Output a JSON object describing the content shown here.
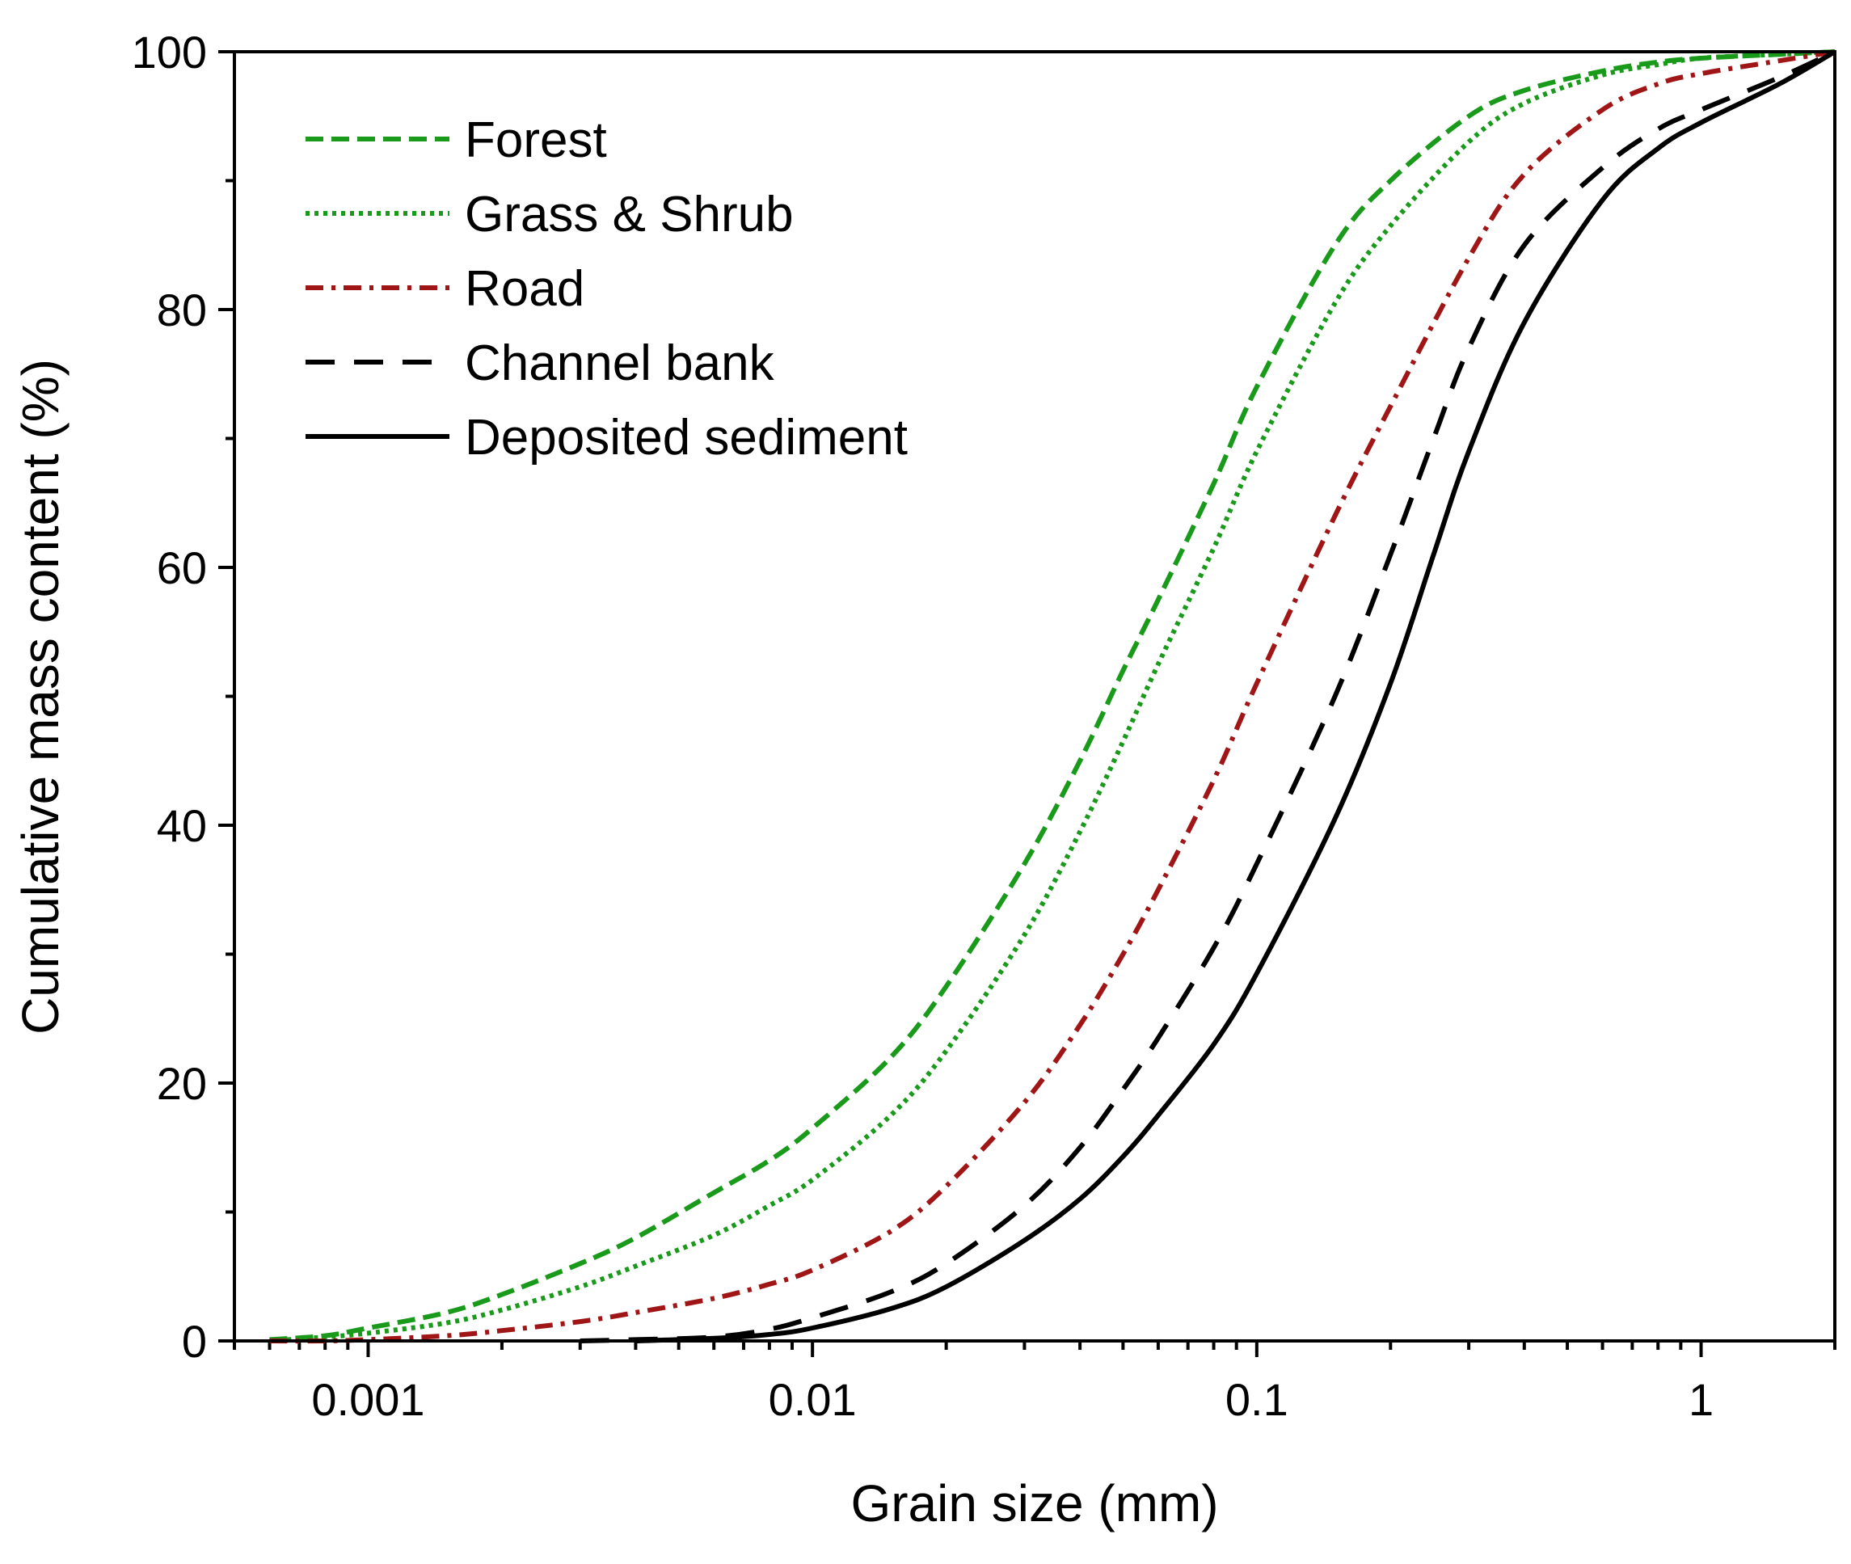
{
  "chart_data": {
    "type": "line",
    "xscale": "log",
    "xlabel": "Grain size (mm)",
    "ylabel": "Cumulative mass content (%)",
    "xlim": [
      0.0005,
      2
    ],
    "ylim": [
      0,
      100
    ],
    "x_ticks": [
      {
        "value": 0.001,
        "label": "0.001"
      },
      {
        "value": 0.01,
        "label": "0.01"
      },
      {
        "value": 0.1,
        "label": "0.1"
      },
      {
        "value": 1,
        "label": "1"
      }
    ],
    "y_ticks": [
      {
        "value": 0,
        "label": "0"
      },
      {
        "value": 20,
        "label": "20"
      },
      {
        "value": 40,
        "label": "40"
      },
      {
        "value": 60,
        "label": "60"
      },
      {
        "value": 80,
        "label": "80"
      },
      {
        "value": 100,
        "label": "100"
      }
    ],
    "legend_position": "top-left",
    "series": [
      {
        "name": "Forest",
        "color": "#1a9a1a",
        "style": "short-dash",
        "x": [
          0.0006,
          0.0008,
          0.001,
          0.0015,
          0.002,
          0.003,
          0.004,
          0.006,
          0.008,
          0.01,
          0.015,
          0.02,
          0.03,
          0.04,
          0.05,
          0.06,
          0.08,
          0.1,
          0.15,
          0.2,
          0.3,
          0.4,
          0.6,
          0.8,
          1,
          1.5,
          2
        ],
        "y": [
          0.1,
          0.4,
          1,
          2.2,
          3.6,
          6,
          8,
          11.5,
          14,
          16.5,
          22,
          27.5,
          37,
          45,
          52,
          57.5,
          66.5,
          74,
          85,
          90,
          95,
          97,
          98.5,
          99.2,
          99.5,
          99.8,
          100
        ]
      },
      {
        "name": "Grass & Shrub",
        "color": "#1a9a1a",
        "style": "dotted",
        "x": [
          0.0006,
          0.0008,
          0.001,
          0.0015,
          0.002,
          0.003,
          0.004,
          0.006,
          0.008,
          0.01,
          0.015,
          0.02,
          0.03,
          0.04,
          0.05,
          0.06,
          0.08,
          0.1,
          0.15,
          0.2,
          0.3,
          0.4,
          0.6,
          0.8,
          1,
          1.5,
          2
        ],
        "y": [
          0,
          0.3,
          0.6,
          1.4,
          2.4,
          4.2,
          5.8,
          8.2,
          10.5,
          12.5,
          17.5,
          22.5,
          31.5,
          39.5,
          46.5,
          52.5,
          61.5,
          69,
          80.5,
          86.5,
          93,
          96,
          98.2,
          99,
          99.5,
          99.8,
          100
        ]
      },
      {
        "name": "Road",
        "color": "#a01616",
        "style": "dash-dot",
        "x": [
          0.0006,
          0.0008,
          0.001,
          0.0015,
          0.002,
          0.003,
          0.004,
          0.006,
          0.008,
          0.01,
          0.015,
          0.02,
          0.03,
          0.04,
          0.05,
          0.06,
          0.08,
          0.1,
          0.15,
          0.2,
          0.3,
          0.4,
          0.6,
          0.8,
          1,
          1.5,
          2
        ],
        "y": [
          0,
          0,
          0.1,
          0.4,
          0.8,
          1.5,
          2.2,
          3.3,
          4.4,
          5.5,
          8.5,
          12,
          18.5,
          24.5,
          30,
          35,
          43.5,
          51,
          64,
          72.5,
          84,
          90.5,
          95.5,
          97.5,
          98.3,
          99.3,
          100
        ]
      },
      {
        "name": "Channel bank",
        "color": "#000000",
        "style": "long-dash",
        "x": [
          0.003,
          0.004,
          0.006,
          0.008,
          0.01,
          0.015,
          0.02,
          0.03,
          0.04,
          0.05,
          0.06,
          0.08,
          0.1,
          0.15,
          0.2,
          0.25,
          0.3,
          0.4,
          0.6,
          0.8,
          1,
          1.5,
          2
        ],
        "y": [
          0,
          0.1,
          0.3,
          0.9,
          1.8,
          3.8,
          6,
          10.5,
          15,
          19.5,
          23.5,
          30.5,
          37,
          50,
          61,
          70,
          77,
          85,
          91,
          94,
          95.5,
          98,
          100
        ]
      },
      {
        "name": "Deposited sediment",
        "color": "#000000",
        "style": "solid",
        "x": [
          0.004,
          0.006,
          0.008,
          0.01,
          0.015,
          0.02,
          0.03,
          0.04,
          0.05,
          0.06,
          0.08,
          0.1,
          0.15,
          0.2,
          0.25,
          0.3,
          0.4,
          0.6,
          0.8,
          1,
          1.5,
          2
        ],
        "y": [
          0,
          0.2,
          0.5,
          1,
          2.5,
          4.2,
          7.8,
          11,
          14.3,
          17.5,
          23,
          28.5,
          40.5,
          51,
          61,
          69,
          79,
          88.5,
          92.5,
          94.5,
          97.5,
          100
        ]
      }
    ]
  }
}
